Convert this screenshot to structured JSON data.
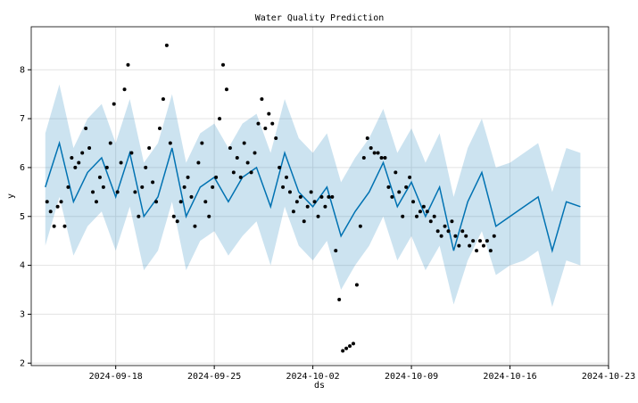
{
  "chart_data": {
    "type": "forecast",
    "title": "Water Quality Prediction",
    "xlabel": "ds",
    "ylabel": "y",
    "xlim": [
      "2024-09-12",
      "2024-10-23"
    ],
    "xticks": [
      "2024-09-18",
      "2024-09-25",
      "2024-10-02",
      "2024-10-09",
      "2024-10-16",
      "2024-10-23"
    ],
    "ylim": [
      1.95,
      8.88
    ],
    "yticks": [
      2,
      3,
      4,
      5,
      6,
      7,
      8
    ],
    "grid": true,
    "line_color": "#0072b2",
    "band_color": "#0072b2",
    "point_color": "#000000",
    "forecast_x": [
      "2024-09-13",
      "2024-09-14",
      "2024-09-15",
      "2024-09-16",
      "2024-09-17",
      "2024-09-18",
      "2024-09-19",
      "2024-09-20",
      "2024-09-21",
      "2024-09-22",
      "2024-09-23",
      "2024-09-24",
      "2024-09-25",
      "2024-09-26",
      "2024-09-27",
      "2024-09-28",
      "2024-09-29",
      "2024-09-30",
      "2024-10-01",
      "2024-10-02",
      "2024-10-03",
      "2024-10-04",
      "2024-10-05",
      "2024-10-06",
      "2024-10-07",
      "2024-10-08",
      "2024-10-09",
      "2024-10-10",
      "2024-10-11",
      "2024-10-12",
      "2024-10-13",
      "2024-10-14",
      "2024-10-15",
      "2024-10-16",
      "2024-10-17",
      "2024-10-18",
      "2024-10-19",
      "2024-10-20",
      "2024-10-21"
    ],
    "yhat": [
      5.6,
      6.5,
      5.3,
      5.9,
      6.2,
      5.4,
      6.3,
      5.0,
      5.4,
      6.4,
      5.0,
      5.6,
      5.8,
      5.3,
      5.8,
      6.0,
      5.2,
      6.3,
      5.5,
      5.2,
      5.6,
      4.6,
      5.1,
      5.5,
      6.1,
      5.2,
      5.7,
      5.0,
      5.6,
      4.3,
      5.3,
      5.9,
      4.8,
      5.0,
      5.2,
      5.4,
      4.3,
      5.3,
      5.2
    ],
    "yhat_lower": [
      4.4,
      5.4,
      4.2,
      4.8,
      5.1,
      4.3,
      5.2,
      3.9,
      4.3,
      5.3,
      3.9,
      4.5,
      4.7,
      4.2,
      4.6,
      4.9,
      4.0,
      5.2,
      4.4,
      4.1,
      4.5,
      3.5,
      4.0,
      4.4,
      5.0,
      4.1,
      4.6,
      3.9,
      4.4,
      3.2,
      4.1,
      4.7,
      3.8,
      4.0,
      4.1,
      4.3,
      3.15,
      4.1,
      4.0
    ],
    "yhat_upper": [
      6.7,
      7.7,
      6.4,
      7.0,
      7.3,
      6.5,
      7.4,
      6.1,
      6.5,
      7.5,
      6.1,
      6.7,
      6.9,
      6.4,
      6.9,
      7.1,
      6.3,
      7.4,
      6.6,
      6.3,
      6.7,
      5.7,
      6.2,
      6.6,
      7.2,
      6.3,
      6.8,
      6.1,
      6.7,
      5.4,
      6.4,
      7.0,
      6.0,
      6.1,
      6.3,
      6.5,
      5.5,
      6.4,
      6.3
    ],
    "observed_x": [
      "2024-09-13",
      "2024-09-13",
      "2024-09-13",
      "2024-09-13",
      "2024-09-14",
      "2024-09-14",
      "2024-09-14",
      "2024-09-14",
      "2024-09-15",
      "2024-09-15",
      "2024-09-15",
      "2024-09-15",
      "2024-09-16",
      "2024-09-16",
      "2024-09-16",
      "2024-09-16",
      "2024-09-17",
      "2024-09-17",
      "2024-09-17",
      "2024-09-17",
      "2024-09-18",
      "2024-09-18",
      "2024-09-18",
      "2024-09-18",
      "2024-09-19",
      "2024-09-19",
      "2024-09-19",
      "2024-09-19",
      "2024-09-20",
      "2024-09-20",
      "2024-09-20",
      "2024-09-20",
      "2024-09-21",
      "2024-09-21",
      "2024-09-21",
      "2024-09-21",
      "2024-09-22",
      "2024-09-22",
      "2024-09-22",
      "2024-09-22",
      "2024-09-23",
      "2024-09-23",
      "2024-09-23",
      "2024-09-23",
      "2024-09-24",
      "2024-09-24",
      "2024-09-24",
      "2024-09-24",
      "2024-09-25",
      "2024-09-25",
      "2024-09-25",
      "2024-09-25",
      "2024-09-26",
      "2024-09-26",
      "2024-09-26",
      "2024-09-26",
      "2024-09-27",
      "2024-09-27",
      "2024-09-27",
      "2024-09-27",
      "2024-09-28",
      "2024-09-28",
      "2024-09-28",
      "2024-09-28",
      "2024-09-29",
      "2024-09-29",
      "2024-09-29",
      "2024-09-29",
      "2024-09-30",
      "2024-09-30",
      "2024-09-30",
      "2024-09-30",
      "2024-10-01",
      "2024-10-01",
      "2024-10-01",
      "2024-10-01",
      "2024-10-02",
      "2024-10-02",
      "2024-10-02",
      "2024-10-02",
      "2024-10-03",
      "2024-10-03",
      "2024-10-03",
      "2024-10-03",
      "2024-10-04",
      "2024-10-04",
      "2024-10-04",
      "2024-10-04",
      "2024-10-05",
      "2024-10-05",
      "2024-10-05",
      "2024-10-05",
      "2024-10-06",
      "2024-10-06",
      "2024-10-06",
      "2024-10-06",
      "2024-10-07",
      "2024-10-07",
      "2024-10-07",
      "2024-10-07",
      "2024-10-08",
      "2024-10-08",
      "2024-10-08",
      "2024-10-08",
      "2024-10-09",
      "2024-10-09",
      "2024-10-09",
      "2024-10-09",
      "2024-10-10",
      "2024-10-10",
      "2024-10-10",
      "2024-10-10",
      "2024-10-11",
      "2024-10-11",
      "2024-10-11",
      "2024-10-11",
      "2024-10-12",
      "2024-10-12",
      "2024-10-12",
      "2024-10-12",
      "2024-10-13",
      "2024-10-13",
      "2024-10-13",
      "2024-10-13",
      "2024-10-14",
      "2024-10-14",
      "2024-10-14",
      "2024-10-14"
    ],
    "observed_y": [
      5.3,
      5.1,
      4.8,
      5.2,
      5.3,
      4.8,
      5.6,
      6.2,
      6.0,
      6.1,
      6.3,
      6.8,
      6.4,
      5.5,
      5.3,
      5.8,
      5.6,
      6.0,
      6.5,
      7.3,
      5.5,
      6.1,
      7.6,
      8.1,
      6.3,
      5.5,
      5.0,
      5.6,
      6.0,
      6.4,
      5.7,
      5.3,
      6.8,
      7.4,
      8.5,
      6.5,
      5.0,
      4.9,
      5.3,
      5.6,
      5.8,
      5.4,
      4.8,
      6.1,
      6.5,
      5.3,
      5.0,
      5.6,
      5.8,
      7.0,
      8.1,
      7.6,
      6.4,
      5.9,
      6.2,
      5.8,
      6.5,
      6.1,
      5.9,
      6.3,
      6.9,
      7.4,
      6.8,
      7.1,
      6.9,
      6.6,
      6.0,
      5.6,
      5.8,
      5.5,
      5.1,
      5.3,
      5.4,
      4.9,
      5.2,
      5.5,
      5.3,
      5.0,
      5.4,
      5.2,
      5.4,
      5.4,
      4.3,
      3.3,
      2.25,
      2.3,
      2.35,
      2.4,
      3.6,
      4.8,
      6.2,
      6.6,
      6.4,
      6.3,
      6.3,
      6.2,
      6.2,
      5.6,
      5.4,
      5.9,
      5.5,
      5.0,
      5.6,
      5.8,
      5.3,
      5.0,
      5.1,
      5.2,
      5.1,
      4.9,
      5.0,
      4.7,
      4.6,
      4.8,
      4.7,
      4.9,
      4.6,
      4.4,
      4.7,
      4.6,
      4.4,
      4.5,
      4.3,
      4.5,
      4.4,
      4.5,
      4.3,
      4.6
    ]
  }
}
